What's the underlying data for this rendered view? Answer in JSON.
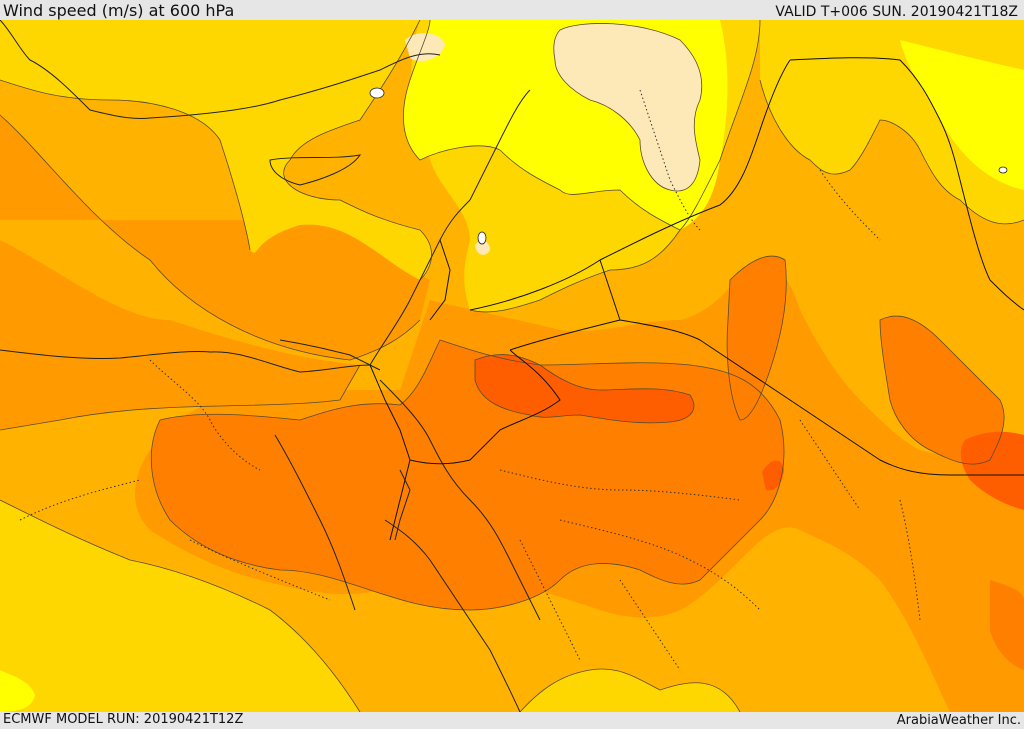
{
  "header": {
    "title": "Wind speed (m/s) at 600 hPa",
    "valid": "VALID T+006 SUN. 20190421T18Z"
  },
  "footer": {
    "model_run": "ECMWF MODEL RUN: 20190421T12Z",
    "credit": "ArabiaWeather Inc."
  },
  "palette": {
    "level_1": "#fde9b8",
    "level_2": "#ffff00",
    "level_3": "#ffd700",
    "level_4": "#ffb300",
    "level_5": "#ff9a00",
    "level_6": "#ff7f00",
    "level_7": "#ff5e00",
    "coast": "#222222",
    "border": "#111111",
    "contour": "#555555"
  }
}
